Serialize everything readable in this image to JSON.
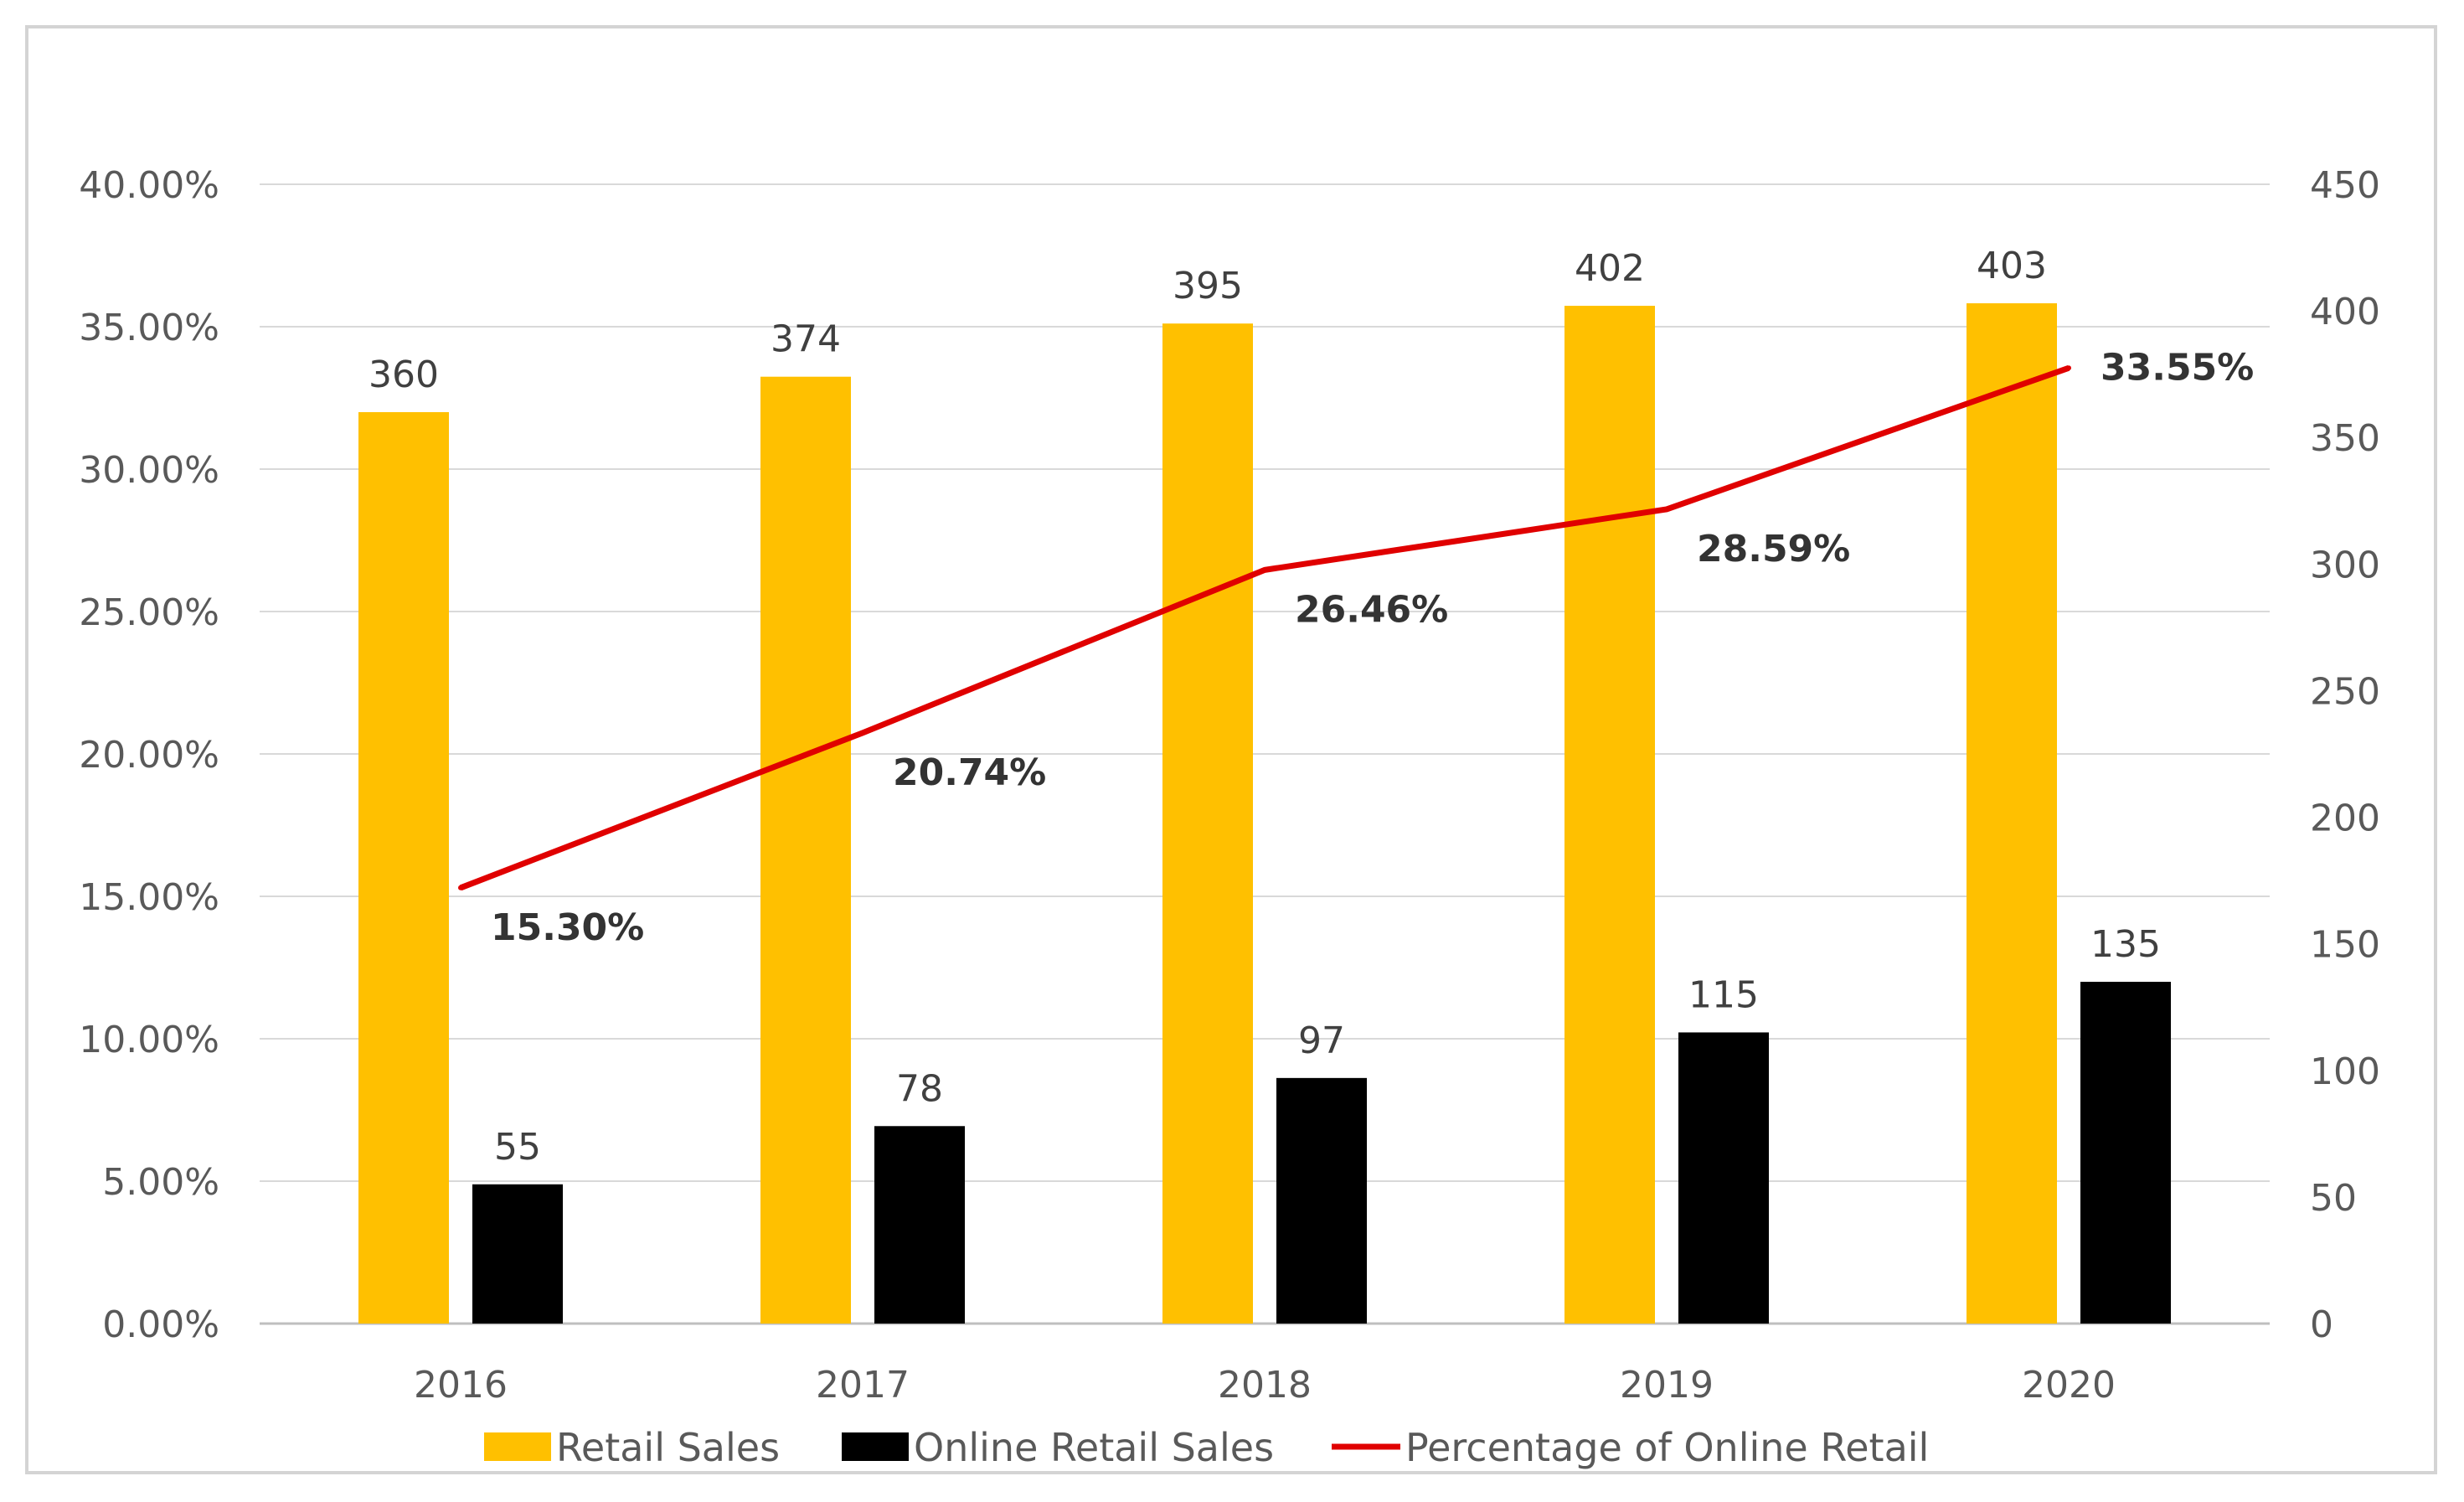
{
  "chart_data": {
    "type": "bar",
    "title": "",
    "xlabel": "",
    "ylabel": "",
    "categories": [
      "2016",
      "2017",
      "2018",
      "2019",
      "2020"
    ],
    "series": [
      {
        "name": "Retail Sales",
        "kind": "bar",
        "axis": "right",
        "color": "#FFC000",
        "values": [
          360,
          374,
          395,
          402,
          403
        ]
      },
      {
        "name": "Online Retail Sales",
        "kind": "bar",
        "axis": "right",
        "color": "#000000",
        "values": [
          55,
          78,
          97,
          115,
          135
        ]
      },
      {
        "name": "Percentage of Online Retail",
        "kind": "line",
        "axis": "left",
        "color": "#E00000",
        "values": [
          15.3,
          20.74,
          26.46,
          28.59,
          33.55
        ],
        "labels": [
          "15.30%",
          "20.74%",
          "26.46%",
          "28.59%",
          "33.55%"
        ]
      }
    ],
    "y_left": {
      "min": 0,
      "max": 40,
      "step": 5,
      "ticks": [
        "0.00%",
        "5.00%",
        "10.00%",
        "15.00%",
        "20.00%",
        "25.00%",
        "30.00%",
        "35.00%",
        "40.00%"
      ]
    },
    "y_right": {
      "min": 0,
      "max": 450,
      "step": 50,
      "ticks": [
        "0",
        "50",
        "100",
        "150",
        "200",
        "250",
        "300",
        "350",
        "400",
        "450"
      ]
    },
    "gridlines": true,
    "legend_position": "bottom"
  }
}
